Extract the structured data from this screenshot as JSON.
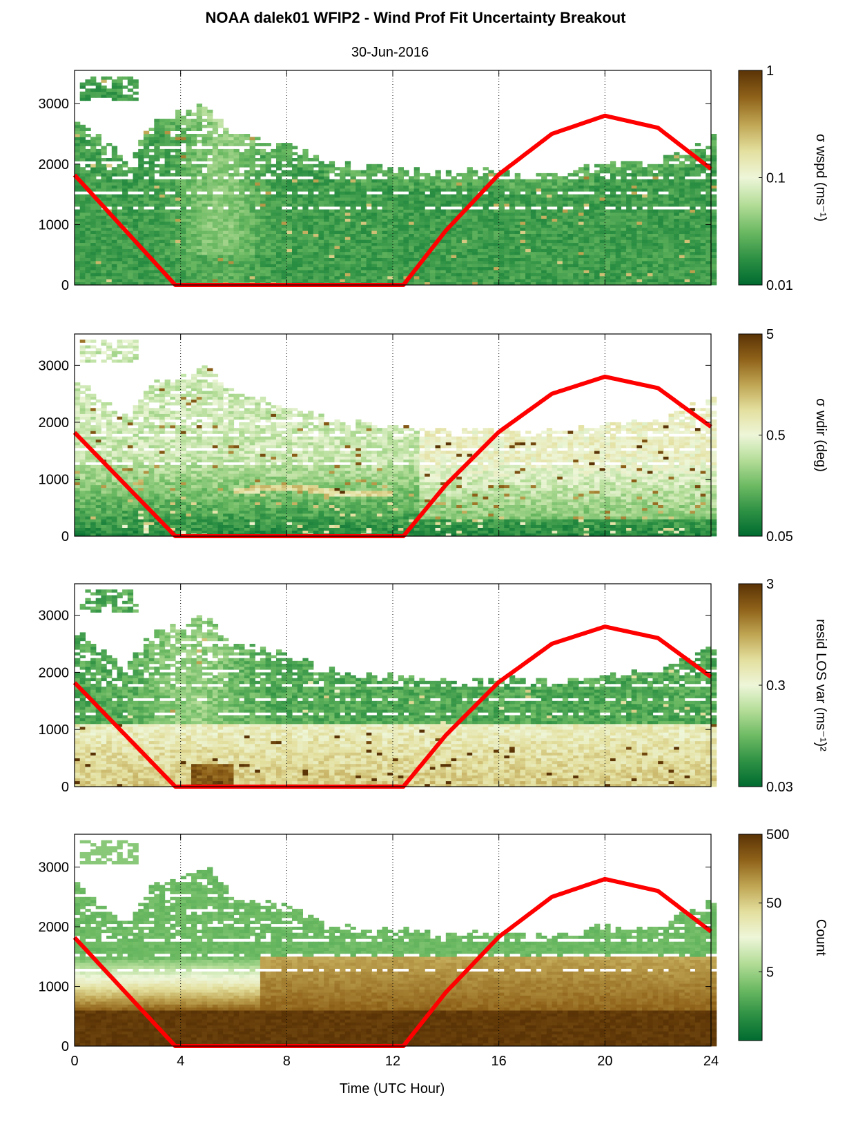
{
  "figure": {
    "title": "NOAA dalek01 WFIP2 - Wind Prof Fit Uncertainty Breakout",
    "subtitle": "30-Jun-2016",
    "xlabel": "Time (UTC Hour)"
  },
  "colors": {
    "overlay_line": "#ff0000",
    "colormap": [
      "#006b30",
      "#2e9144",
      "#6dba63",
      "#b4dd98",
      "#eef6d9",
      "#e3df9e",
      "#bfa553",
      "#8f6219",
      "#5a3306"
    ]
  },
  "chart_data": [
    {
      "type": "heatmap",
      "panel": 1,
      "xlim": [
        0,
        24
      ],
      "xticks": [
        0,
        4,
        8,
        12,
        16,
        20,
        24
      ],
      "ylim": [
        0,
        3550
      ],
      "yticks": [
        0,
        1000,
        2000,
        3000
      ],
      "grid": "vertical dotted at 4, 8, 12, 16, 20",
      "colorbar": {
        "label": "σ wspd (ms⁻¹)",
        "scale": "log",
        "ticks": [
          "0.01",
          "0.1",
          "1"
        ]
      },
      "overlay": {
        "x": [
          0,
          3.8,
          12.4,
          14,
          16,
          18,
          20,
          22,
          24
        ],
        "y": [
          1820,
          0,
          0,
          900,
          1830,
          2500,
          2800,
          2600,
          1920
        ]
      },
      "top_profile": {
        "x": [
          0,
          2,
          3,
          4,
          5,
          6,
          8,
          10,
          12,
          14,
          16,
          18,
          20,
          22,
          24
        ],
        "y": [
          2700,
          2050,
          2700,
          2800,
          2950,
          2500,
          2300,
          1950,
          1900,
          1850,
          1850,
          1800,
          1950,
          2000,
          2400
        ]
      }
    },
    {
      "type": "heatmap",
      "panel": 2,
      "xlim": [
        0,
        24
      ],
      "xticks": [
        0,
        4,
        8,
        12,
        16,
        20,
        24
      ],
      "ylim": [
        0,
        3550
      ],
      "yticks": [
        0,
        1000,
        2000,
        3000
      ],
      "grid": "vertical dotted at 4, 8, 12, 16, 20",
      "colorbar": {
        "label": "σ wdir (deg)",
        "scale": "log",
        "ticks": [
          "0.05",
          "0.5",
          "5"
        ]
      },
      "overlay": {
        "x": [
          0,
          3.8,
          12.4,
          14,
          16,
          18,
          20,
          22,
          24
        ],
        "y": [
          1820,
          0,
          0,
          900,
          1830,
          2500,
          2800,
          2600,
          1920
        ]
      },
      "top_profile": {
        "x": [
          0,
          2,
          3,
          4,
          5,
          6,
          8,
          10,
          12,
          14,
          16,
          18,
          20,
          22,
          24
        ],
        "y": [
          2700,
          2050,
          2700,
          2800,
          2950,
          2500,
          2300,
          1950,
          1900,
          1850,
          1850,
          1800,
          1950,
          2000,
          2400
        ]
      }
    },
    {
      "type": "heatmap",
      "panel": 3,
      "xlim": [
        0,
        24
      ],
      "xticks": [
        0,
        4,
        8,
        12,
        16,
        20,
        24
      ],
      "ylim": [
        0,
        3550
      ],
      "yticks": [
        0,
        1000,
        2000,
        3000
      ],
      "grid": "vertical dotted at 4, 8, 12, 16, 20",
      "colorbar": {
        "label": "resid LOS var (ms⁻¹)²",
        "scale": "log",
        "ticks": [
          "0.03",
          "0.3",
          "3"
        ]
      },
      "overlay": {
        "x": [
          0,
          3.8,
          12.4,
          14,
          16,
          18,
          20,
          22,
          24
        ],
        "y": [
          1820,
          0,
          0,
          900,
          1830,
          2500,
          2800,
          2600,
          1920
        ]
      },
      "top_profile": {
        "x": [
          0,
          2,
          3,
          4,
          5,
          6,
          8,
          10,
          12,
          14,
          16,
          18,
          20,
          22,
          24
        ],
        "y": [
          2700,
          2050,
          2700,
          2800,
          2950,
          2500,
          2300,
          1950,
          1900,
          1850,
          1850,
          1800,
          1950,
          2000,
          2400
        ]
      }
    },
    {
      "type": "heatmap",
      "panel": 4,
      "xlim": [
        0,
        24
      ],
      "xticks": [
        0,
        4,
        8,
        12,
        16,
        20,
        24
      ],
      "ylim": [
        0,
        3550
      ],
      "yticks": [
        0,
        1000,
        2000,
        3000
      ],
      "grid": "vertical dotted at 4, 8, 12, 16, 20",
      "colorbar": {
        "label": "Count",
        "scale": "log",
        "ticks": [
          "5",
          "50",
          "500"
        ]
      },
      "overlay": {
        "x": [
          0,
          3.8,
          12.4,
          14,
          16,
          18,
          20,
          22,
          24
        ],
        "y": [
          1820,
          0,
          0,
          900,
          1830,
          2500,
          2800,
          2600,
          1920
        ]
      },
      "top_profile": {
        "x": [
          0,
          2,
          3,
          4,
          5,
          6,
          8,
          10,
          12,
          14,
          16,
          18,
          20,
          22,
          24
        ],
        "y": [
          2700,
          2050,
          2700,
          2800,
          2950,
          2500,
          2300,
          1950,
          1900,
          1850,
          1850,
          1800,
          1950,
          2000,
          2400
        ]
      }
    }
  ]
}
